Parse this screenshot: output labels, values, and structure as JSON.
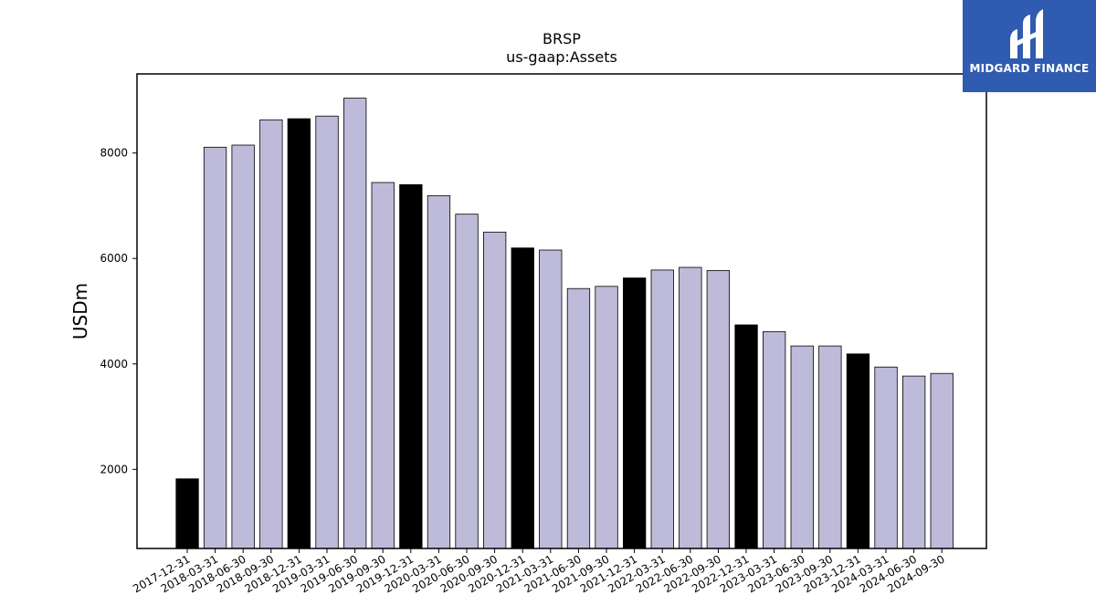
{
  "logo": {
    "text": "MIDGARD FINANCE",
    "background": "#2f5bb0"
  },
  "chart_data": {
    "type": "bar",
    "title": "BRSP",
    "subtitle": "us-gaap:Assets",
    "ylabel": "USDm",
    "xlabel": "",
    "ylim": [
      500,
      9500
    ],
    "yticks": [
      2000,
      4000,
      6000,
      8000
    ],
    "grid": false,
    "legend": "none",
    "colors": {
      "quarter": "#bebad9",
      "year_end": "#000000",
      "edge": "#000000"
    },
    "categories": [
      "2017-12-31",
      "2018-03-31",
      "2018-06-30",
      "2018-09-30",
      "2018-12-31",
      "2019-03-31",
      "2019-06-30",
      "2019-09-30",
      "2019-12-31",
      "2020-03-31",
      "2020-06-30",
      "2020-09-30",
      "2020-12-31",
      "2021-03-31",
      "2021-06-30",
      "2021-09-30",
      "2021-12-31",
      "2022-03-31",
      "2022-06-30",
      "2022-09-30",
      "2022-12-31",
      "2023-03-31",
      "2023-06-30",
      "2023-09-30",
      "2023-12-31",
      "2024-03-31",
      "2024-06-30",
      "2024-09-30"
    ],
    "values": [
      1820,
      8110,
      8150,
      8630,
      8650,
      8700,
      9040,
      7440,
      7400,
      7190,
      6840,
      6500,
      6200,
      6160,
      5430,
      5470,
      5630,
      5780,
      5830,
      5770,
      4740,
      4610,
      4340,
      4340,
      4190,
      3940,
      3770,
      3820
    ],
    "highlight": [
      true,
      false,
      false,
      false,
      true,
      false,
      false,
      false,
      true,
      false,
      false,
      false,
      true,
      false,
      false,
      false,
      true,
      false,
      false,
      false,
      true,
      false,
      false,
      false,
      true,
      false,
      false,
      false
    ]
  }
}
